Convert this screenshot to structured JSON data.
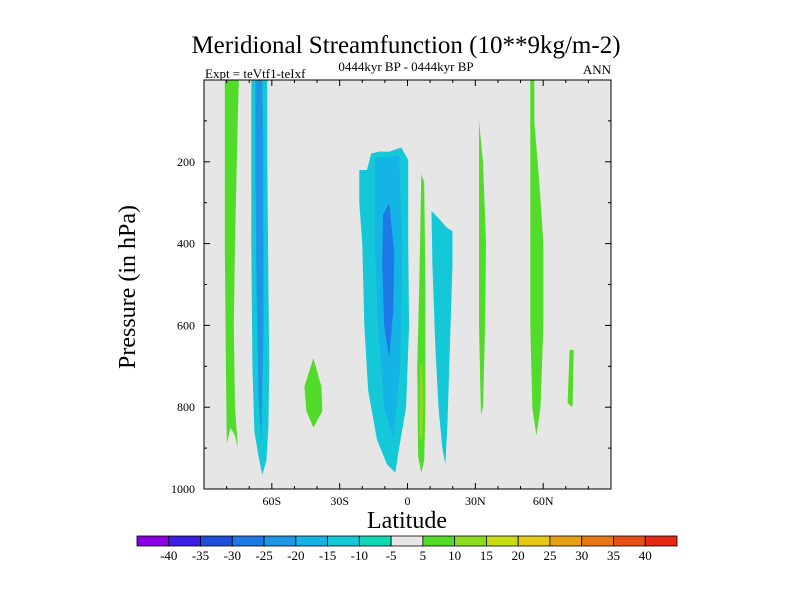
{
  "chart_data": {
    "type": "contour",
    "title": "Meridional Streamfunction (10**9kg/m-2)",
    "subtitle": "0444kyr BP - 0444kyr BP",
    "left_label": "Expt = teVtf1-teIxf",
    "right_label": "ANN",
    "xlabel": "Latitude",
    "ylabel": "Pressure (in hPa)",
    "xlim": [
      -90,
      90
    ],
    "ylim": [
      1000,
      0
    ],
    "x_ticks": [
      {
        "value": -60,
        "label": "60S"
      },
      {
        "value": -30,
        "label": "30S"
      },
      {
        "value": 0,
        "label": "0"
      },
      {
        "value": 30,
        "label": "30N"
      },
      {
        "value": 60,
        "label": "60N"
      }
    ],
    "y_ticks": [
      {
        "value": 200,
        "label": "200"
      },
      {
        "value": 400,
        "label": "400"
      },
      {
        "value": 600,
        "label": "600"
      },
      {
        "value": 800,
        "label": "800"
      },
      {
        "value": 1000,
        "label": "1000"
      }
    ],
    "background_color": "#e6e6e6",
    "colorbar": {
      "levels": [
        "-40",
        "-35",
        "-30",
        "-25",
        "-20",
        "-15",
        "-10",
        "-5",
        "5",
        "10",
        "15",
        "20",
        "25",
        "30",
        "35",
        "40"
      ],
      "colors": [
        "#8a00e6",
        "#3c1ee6",
        "#1e50dc",
        "#1e78e6",
        "#1e96e6",
        "#14b4e6",
        "#14c8d8",
        "#10d8b4",
        "#e6e6e6",
        "#50dc28",
        "#8cdc1e",
        "#c8dc14",
        "#e6c814",
        "#e6a014",
        "#e67814",
        "#e65014",
        "#e62814"
      ]
    },
    "regions": [
      {
        "name": "green-band-75S",
        "value": 7,
        "color": "#50dc28",
        "points": [
          [
            -80.8,
            0
          ],
          [
            -74.6,
            0
          ],
          [
            -75.5,
            200
          ],
          [
            -76.3,
            400
          ],
          [
            -76.8,
            600
          ],
          [
            -76.3,
            800
          ],
          [
            -75.0,
            900
          ],
          [
            -76.3,
            870
          ],
          [
            -78.3,
            850
          ],
          [
            -79.9,
            890
          ],
          [
            -80.3,
            700
          ],
          [
            -80.8,
            400
          ]
        ]
      },
      {
        "name": "cyan-band-65S",
        "value": -8,
        "color": "#14c8d8",
        "points": [
          [
            -69.1,
            0
          ],
          [
            -62.0,
            0
          ],
          [
            -62.0,
            200
          ],
          [
            -61.5,
            500
          ],
          [
            -61.1,
            700
          ],
          [
            -61.5,
            850
          ],
          [
            -62.4,
            930
          ],
          [
            -64.2,
            965
          ],
          [
            -65.9,
            920
          ],
          [
            -67.7,
            860
          ],
          [
            -68.6,
            700
          ],
          [
            -69.1,
            400
          ]
        ]
      },
      {
        "name": "blue-core-65S",
        "value": -17,
        "color": "#1e96e6",
        "points": [
          [
            -67.3,
            0
          ],
          [
            -64.2,
            0
          ],
          [
            -63.7,
            200
          ],
          [
            -63.7,
            600
          ],
          [
            -64.6,
            880
          ],
          [
            -65.9,
            780
          ],
          [
            -66.8,
            500
          ],
          [
            -67.3,
            200
          ]
        ]
      },
      {
        "name": "green-blob-40S",
        "value": 6,
        "color": "#50dc28",
        "points": [
          [
            -45.6,
            750
          ],
          [
            -41.6,
            680
          ],
          [
            -38.1,
            750
          ],
          [
            -37.7,
            810
          ],
          [
            -41.6,
            850
          ],
          [
            -44.7,
            810
          ]
        ]
      },
      {
        "name": "cyan-cell-10S",
        "value": -9,
        "color": "#14c8d8",
        "points": [
          [
            -21.3,
            220
          ],
          [
            -17.9,
            220
          ],
          [
            -16.1,
            180
          ],
          [
            -12.6,
            175
          ],
          [
            -8.1,
            175
          ],
          [
            -2.8,
            165
          ],
          [
            0.3,
            195
          ],
          [
            0.3,
            400
          ],
          [
            0.7,
            600
          ],
          [
            -0.6,
            800
          ],
          [
            -3.7,
            900
          ],
          [
            -5.4,
            960
          ],
          [
            -9.0,
            940
          ],
          [
            -13.5,
            880
          ],
          [
            -17.4,
            760
          ],
          [
            -19.1,
            600
          ],
          [
            -20.0,
            400
          ],
          [
            -21.3,
            300
          ]
        ]
      },
      {
        "name": "teal-cell-interior",
        "value": -12,
        "color": "#14b4e6",
        "points": [
          [
            -14.4,
            190
          ],
          [
            -8.1,
            188
          ],
          [
            -3.7,
            185
          ],
          [
            -2.3,
            400
          ],
          [
            -3.2,
            700
          ],
          [
            -6.3,
            880
          ],
          [
            -10.3,
            800
          ],
          [
            -13.0,
            600
          ],
          [
            -14.4,
            400
          ]
        ]
      },
      {
        "name": "blue-core-10S",
        "value": -20,
        "color": "#1e78e6",
        "points": [
          [
            -10.8,
            330
          ],
          [
            -8.1,
            300
          ],
          [
            -5.9,
            420
          ],
          [
            -6.3,
            560
          ],
          [
            -8.1,
            680
          ],
          [
            -10.3,
            600
          ],
          [
            -11.2,
            450
          ]
        ]
      },
      {
        "name": "green-strip-5N",
        "value": 7,
        "color": "#50dc28",
        "points": [
          [
            6.1,
            230
          ],
          [
            7.4,
            250
          ],
          [
            7.9,
            500
          ],
          [
            7.9,
            800
          ],
          [
            7.4,
            930
          ],
          [
            6.1,
            960
          ],
          [
            4.7,
            920
          ],
          [
            4.3,
            700
          ],
          [
            5.2,
            500
          ]
        ]
      },
      {
        "name": "olive-core-5N",
        "value": 12,
        "color": "#8cdc1e",
        "points": [
          [
            5.6,
            700
          ],
          [
            6.5,
            690
          ],
          [
            7.0,
            800
          ],
          [
            6.5,
            880
          ],
          [
            5.2,
            870
          ]
        ]
      },
      {
        "name": "cyan-cell-15N",
        "value": -7,
        "color": "#14c8d8",
        "points": [
          [
            10.6,
            320
          ],
          [
            14.1,
            340
          ],
          [
            17.2,
            360
          ],
          [
            19.9,
            370
          ],
          [
            19.9,
            450
          ],
          [
            18.5,
            700
          ],
          [
            17.6,
            850
          ],
          [
            16.7,
            940
          ],
          [
            15.4,
            900
          ],
          [
            13.7,
            800
          ],
          [
            12.3,
            650
          ],
          [
            11.0,
            450
          ]
        ]
      },
      {
        "name": "green-strip-33N",
        "value": 6,
        "color": "#50dc28",
        "points": [
          [
            31.6,
            100
          ],
          [
            33.4,
            200
          ],
          [
            34.7,
            400
          ],
          [
            34.3,
            600
          ],
          [
            33.4,
            800
          ],
          [
            32.5,
            820
          ],
          [
            31.6,
            600
          ],
          [
            31.6,
            300
          ]
        ]
      },
      {
        "name": "green-strip-55N",
        "value": 7,
        "color": "#50dc28",
        "points": [
          [
            54.3,
            0
          ],
          [
            56.1,
            0
          ],
          [
            56.1,
            100
          ],
          [
            58.3,
            250
          ],
          [
            60.1,
            400
          ],
          [
            60.1,
            600
          ],
          [
            58.8,
            800
          ],
          [
            57.0,
            870
          ],
          [
            55.2,
            800
          ],
          [
            54.3,
            600
          ],
          [
            54.3,
            300
          ]
        ]
      },
      {
        "name": "green-blob-72N",
        "value": 6,
        "color": "#50dc28",
        "points": [
          [
            71.7,
            660
          ],
          [
            73.5,
            660
          ],
          [
            73.0,
            800
          ],
          [
            70.8,
            790
          ],
          [
            71.3,
            720
          ]
        ]
      }
    ]
  }
}
